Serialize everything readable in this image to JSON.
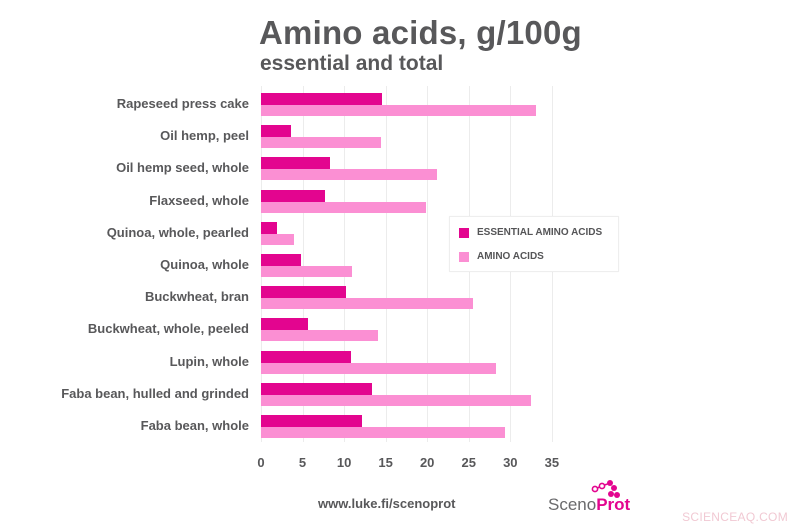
{
  "header": {
    "title": "Amino acids, g/100g",
    "subtitle": "essential and total"
  },
  "chart_data": {
    "type": "bar",
    "orientation": "horizontal",
    "title": "Amino acids, g/100g",
    "subtitle": "essential and total",
    "xlabel": "",
    "ylabel": "",
    "xlim": [
      0,
      35
    ],
    "x_ticks": [
      "0",
      "5",
      "10",
      "15",
      "20",
      "25",
      "30",
      "35"
    ],
    "grid": true,
    "legend_position": "right-center inside plot",
    "categories": [
      "Rapeseed press cake",
      "Oil hemp, peel",
      "Oil hemp seed, whole",
      "Flaxseed, whole",
      "Quinoa, whole, pearled",
      "Quinoa, whole",
      "Buckwheat, bran",
      "Buckwheat, whole, peeled",
      "Lupin, whole",
      "Faba bean, hulled and grinded",
      "Faba bean, whole"
    ],
    "series": [
      {
        "name": "ESSENTIAL AMINO ACIDS",
        "color": "#e3058f",
        "values": [
          14.6,
          3.6,
          8.3,
          7.7,
          1.9,
          4.8,
          10.2,
          5.7,
          10.8,
          13.3,
          12.2
        ]
      },
      {
        "name": "AMINO ACIDS",
        "color": "#fb8fd3",
        "values": [
          33.1,
          14.5,
          21.2,
          19.9,
          4.0,
          11.0,
          25.5,
          14.1,
          28.3,
          32.5,
          29.4
        ]
      }
    ]
  },
  "legend": {
    "items": [
      {
        "label": "ESSENTIAL AMINO ACIDS",
        "color": "#e3058f"
      },
      {
        "label": "AMINO ACIDS",
        "color": "#fb8fd3"
      }
    ]
  },
  "footer": {
    "url": "www.luke.fi/scenoprot",
    "logo_part1": "Sceno",
    "logo_part2": "Prot"
  },
  "watermark": "SCIENCEAQ.COM"
}
